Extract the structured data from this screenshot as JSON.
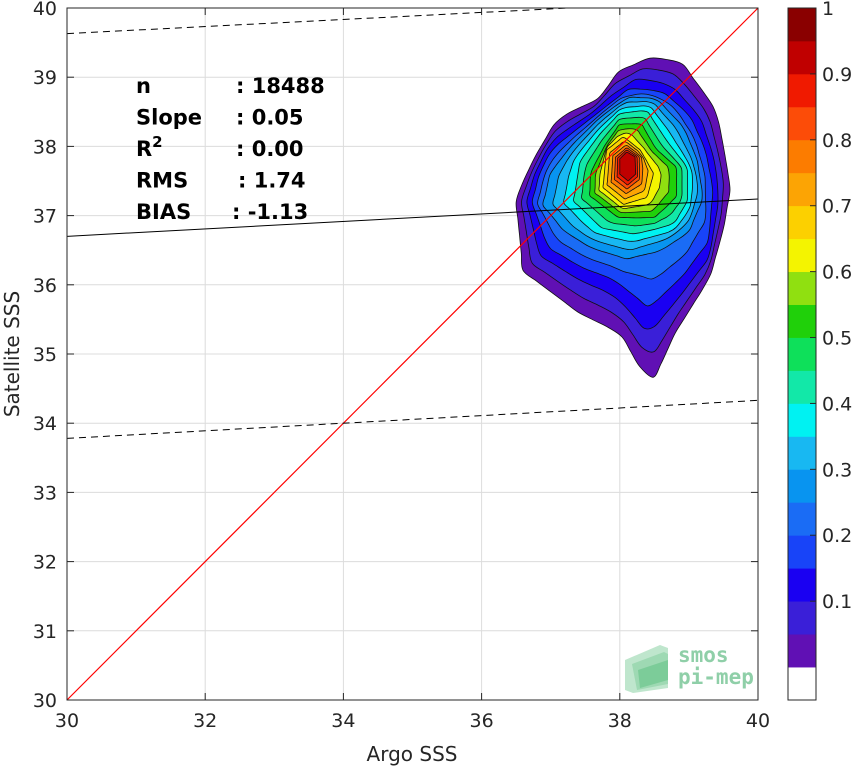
{
  "chart_data": {
    "type": "heatmap",
    "xlabel": "Argo SSS",
    "ylabel": "Satellite SSS",
    "xlim": [
      30,
      40
    ],
    "ylim": [
      30,
      40
    ],
    "x_ticks": [
      "30",
      "32",
      "34",
      "36",
      "38",
      "40"
    ],
    "y_ticks": [
      "30",
      "31",
      "32",
      "33",
      "34",
      "35",
      "36",
      "37",
      "38",
      "39",
      "40"
    ],
    "grid": true,
    "stats": [
      {
        "label": "n",
        "value": ": 18488"
      },
      {
        "label": "Slope",
        "value": ": 0.05"
      },
      {
        "label": "R",
        "sup": "2",
        "value": ": 0.00"
      },
      {
        "label": "RMS",
        "value": ": 1.74"
      },
      {
        "label": "BIAS",
        "value": ": -1.13"
      }
    ],
    "identity_line": {
      "x": [
        30,
        40
      ],
      "y": [
        30,
        40
      ],
      "color": "#ff0000"
    },
    "regression_line": {
      "x": [
        30,
        40
      ],
      "y": [
        36.7,
        37.24
      ],
      "color": "#000000"
    },
    "confidence_lines": [
      {
        "x": [
          30,
          40
        ],
        "y": [
          39.63,
          40.14
        ],
        "style": "dashed"
      },
      {
        "x": [
          30,
          40
        ],
        "y": [
          33.78,
          34.33
        ],
        "style": "dashed"
      }
    ],
    "density_contours": {
      "center": [
        38.15,
        37.8
      ],
      "levels": [
        0.05,
        0.1,
        0.15,
        0.2,
        0.25,
        0.3,
        0.35,
        0.4,
        0.45,
        0.5,
        0.55,
        0.6,
        0.65,
        0.7,
        0.75,
        0.8,
        0.85,
        0.9,
        0.95
      ],
      "colors": [
        "#6010b4",
        "#3a1fd8",
        "#1a00f2",
        "#1844f8",
        "#1a6cf5",
        "#0894f0",
        "#18b8f2",
        "#00f2f2",
        "#12e8a8",
        "#0ee05a",
        "#20d00a",
        "#90e010",
        "#f4f400",
        "#fcd000",
        "#fca404",
        "#fc7c00",
        "#fc4c08",
        "#f01a00",
        "#c00000"
      ],
      "shapes": [
        [
          [
            36.5,
            37.2
          ],
          [
            36.6,
            36.2
          ],
          [
            37.0,
            35.9
          ],
          [
            37.4,
            35.6
          ],
          [
            38.0,
            35.3
          ],
          [
            38.3,
            34.8
          ],
          [
            38.5,
            34.65
          ],
          [
            38.8,
            35.3
          ],
          [
            39.3,
            36.1
          ],
          [
            39.5,
            36.8
          ],
          [
            39.6,
            37.4
          ],
          [
            39.5,
            38.0
          ],
          [
            39.4,
            38.5
          ],
          [
            39.2,
            38.8
          ],
          [
            38.9,
            39.2
          ],
          [
            38.5,
            39.3
          ],
          [
            38.0,
            39.1
          ],
          [
            37.7,
            38.7
          ],
          [
            37.1,
            38.4
          ],
          [
            36.8,
            37.9
          ],
          [
            36.6,
            37.5
          ]
        ],
        [
          [
            36.7,
            37.2
          ],
          [
            36.9,
            36.5
          ],
          [
            37.4,
            36.2
          ],
          [
            37.9,
            36.0
          ],
          [
            38.4,
            35.5
          ],
          [
            38.9,
            36.0
          ],
          [
            39.3,
            36.5
          ],
          [
            39.4,
            37.3
          ],
          [
            39.3,
            37.9
          ],
          [
            39.1,
            38.4
          ],
          [
            38.7,
            38.8
          ],
          [
            38.2,
            38.9
          ],
          [
            37.8,
            38.6
          ],
          [
            37.4,
            38.3
          ],
          [
            37.0,
            38.0
          ],
          [
            36.8,
            37.6
          ]
        ],
        [
          [
            36.9,
            37.15
          ],
          [
            37.2,
            36.8
          ],
          [
            37.6,
            36.55
          ],
          [
            38.1,
            36.4
          ],
          [
            38.6,
            36.55
          ],
          [
            39.0,
            36.8
          ],
          [
            39.2,
            37.3
          ],
          [
            39.1,
            37.85
          ],
          [
            38.9,
            38.3
          ],
          [
            38.5,
            38.7
          ],
          [
            38.1,
            38.7
          ],
          [
            37.7,
            38.4
          ],
          [
            37.3,
            38.0
          ],
          [
            37.0,
            37.6
          ]
        ],
        [
          [
            37.3,
            37.2
          ],
          [
            37.7,
            36.8
          ],
          [
            38.2,
            36.7
          ],
          [
            38.8,
            36.85
          ],
          [
            39.0,
            37.2
          ],
          [
            39.0,
            37.7
          ],
          [
            38.7,
            38.1
          ],
          [
            38.4,
            38.55
          ],
          [
            38.0,
            38.5
          ],
          [
            37.7,
            38.2
          ],
          [
            37.4,
            37.8
          ]
        ],
        [
          [
            37.6,
            37.3
          ],
          [
            38.0,
            37.0
          ],
          [
            38.5,
            37.0
          ],
          [
            38.8,
            37.3
          ],
          [
            38.8,
            37.7
          ],
          [
            38.5,
            37.95
          ],
          [
            38.3,
            38.3
          ],
          [
            38.0,
            38.3
          ],
          [
            37.8,
            38.0
          ],
          [
            37.6,
            37.6
          ]
        ],
        [
          [
            37.75,
            37.4
          ],
          [
            38.05,
            37.15
          ],
          [
            38.4,
            37.25
          ],
          [
            38.5,
            37.6
          ],
          [
            38.3,
            37.95
          ],
          [
            38.05,
            38.15
          ],
          [
            37.8,
            37.95
          ]
        ],
        [
          [
            37.9,
            37.5
          ],
          [
            38.1,
            37.35
          ],
          [
            38.3,
            37.5
          ],
          [
            38.3,
            37.85
          ],
          [
            38.1,
            38.0
          ],
          [
            37.92,
            37.85
          ]
        ],
        [
          [
            38.0,
            37.6
          ],
          [
            38.12,
            37.5
          ],
          [
            38.23,
            37.6
          ],
          [
            38.22,
            37.85
          ],
          [
            38.1,
            37.92
          ],
          [
            38.0,
            37.82
          ]
        ]
      ]
    }
  },
  "colorbar": {
    "colors": [
      "#ffffff",
      "#6010b4",
      "#3a1fd8",
      "#1a00f2",
      "#1844f8",
      "#1a6cf5",
      "#0894f0",
      "#18b8f2",
      "#00f2f2",
      "#12e8a8",
      "#0ee05a",
      "#20d00a",
      "#90e010",
      "#f4f400",
      "#fcd000",
      "#fca404",
      "#fc7c00",
      "#fc4c08",
      "#f01a00",
      "#c00000",
      "#8a0000"
    ],
    "tick_labels": [
      "0.1",
      "0.2",
      "0.3",
      "0.4",
      "0.5",
      "0.6",
      "0.7",
      "0.8",
      "0.9",
      "1"
    ],
    "tick_values": [
      0.1,
      0.2,
      0.3,
      0.4,
      0.5,
      0.6,
      0.7,
      0.8,
      0.9,
      1.0
    ]
  },
  "logo": {
    "line1": "smos",
    "line2": "pi-mep"
  }
}
